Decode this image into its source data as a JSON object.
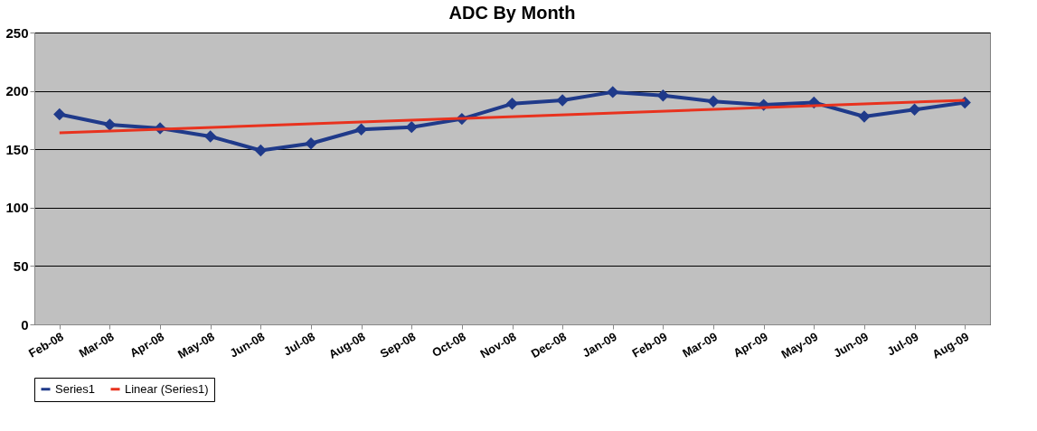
{
  "chart_data": {
    "type": "line",
    "title": "ADC By Month",
    "categories": [
      "Feb-08",
      "Mar-08",
      "Apr-08",
      "May-08",
      "Jun-08",
      "Jul-08",
      "Aug-08",
      "Sep-08",
      "Oct-08",
      "Nov-08",
      "Dec-08",
      "Jan-09",
      "Feb-09",
      "Mar-09",
      "Apr-09",
      "May-09",
      "Jun-09",
      "Jul-09",
      "Aug-09"
    ],
    "series": [
      {
        "name": "Series1",
        "color": "#1f3a8a",
        "marker": "diamond",
        "values": [
          180,
          171,
          168,
          161,
          149,
          155,
          167,
          169,
          176,
          189,
          192,
          199,
          196,
          191,
          188,
          190,
          178,
          184,
          190
        ]
      },
      {
        "name": "Linear (Series1)",
        "color": "#e8321e",
        "type": "line",
        "marker": "none",
        "x": [
          "Feb-08",
          "Aug-09"
        ],
        "values": [
          164,
          192
        ]
      }
    ],
    "ylim": [
      0,
      250
    ],
    "yticks": [
      0,
      50,
      100,
      150,
      200,
      250
    ],
    "grid": "y",
    "legend": "bottom"
  }
}
